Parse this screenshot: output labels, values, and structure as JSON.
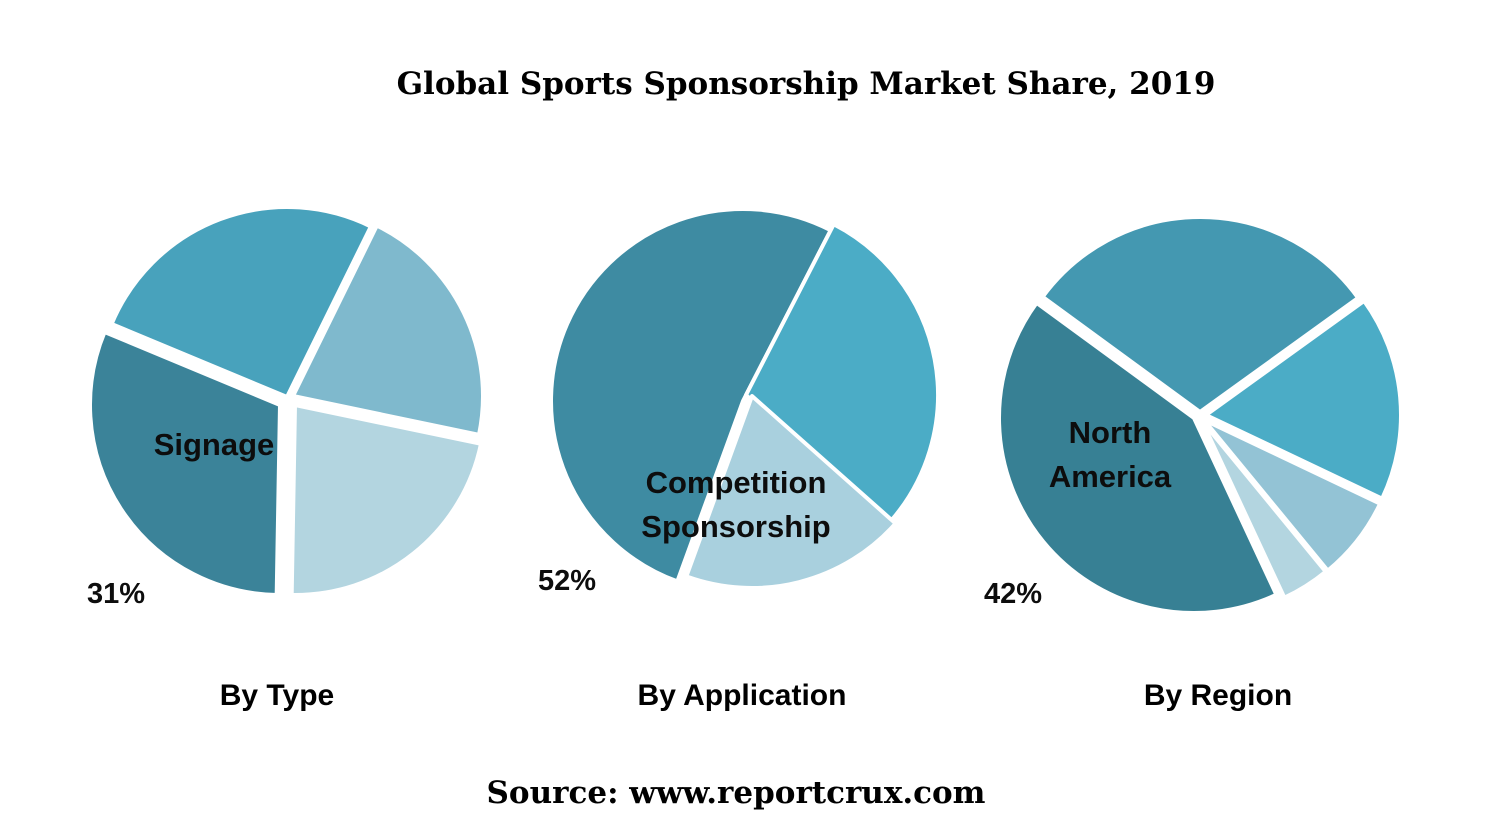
{
  "title": "Global Sports Sponsorship Market Share, 2019",
  "source": "Source: www.reportcrux.com",
  "chart_data": [
    {
      "type": "pie",
      "name": "By Type",
      "highlight": {
        "label": "Signage",
        "percent_label": "31%"
      },
      "slices": [
        {
          "label": "Signage",
          "value": 31,
          "color": "#3b8399"
        },
        {
          "label": "",
          "value": 26,
          "color": "#48a2bc"
        },
        {
          "label": "",
          "value": 21,
          "color": "#7fb9cd"
        },
        {
          "label": "",
          "value": 22,
          "color": "#b3d5e0"
        }
      ]
    },
    {
      "type": "pie",
      "name": "By Application",
      "highlight": {
        "label": "Competition Sponsorship",
        "percent_label": "52%"
      },
      "slices": [
        {
          "label": "Competition Sponsorship",
          "value": 52,
          "color": "#3e8ba2"
        },
        {
          "label": "",
          "value": 29,
          "color": "#4bacc6"
        },
        {
          "label": "",
          "value": 19,
          "color": "#a9d0de"
        }
      ]
    },
    {
      "type": "pie",
      "name": "By Region",
      "highlight": {
        "label": "North America",
        "percent_label": "42%"
      },
      "slices": [
        {
          "label": "North America",
          "value": 42,
          "color": "#378094"
        },
        {
          "label": "",
          "value": 30,
          "color": "#4498b1"
        },
        {
          "label": "",
          "value": 17,
          "color": "#4bacc6"
        },
        {
          "label": "",
          "value": 7,
          "color": "#93c3d5"
        },
        {
          "label": "",
          "value": 4,
          "color": "#b3d5e0"
        }
      ]
    }
  ]
}
